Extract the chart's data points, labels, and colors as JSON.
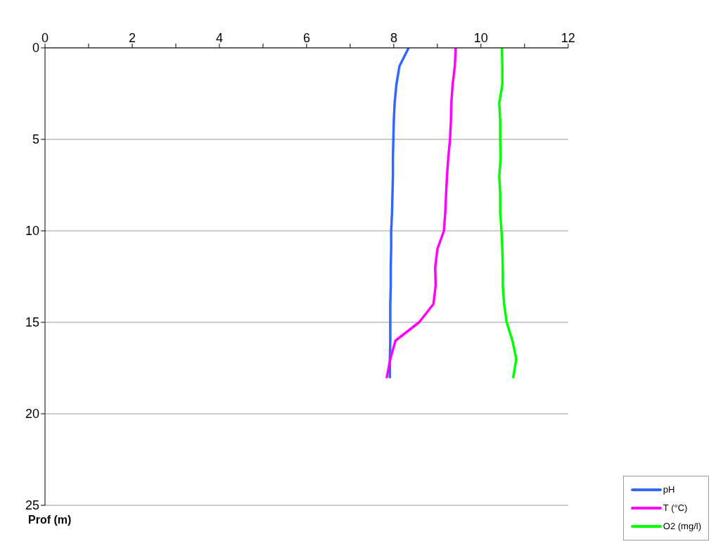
{
  "chart_data": {
    "type": "line",
    "ylabel": "Prof (m)",
    "xlim": [
      0,
      12
    ],
    "xticks": [
      0,
      {
        "value": 1,
        "label": null
      },
      2,
      {
        "value": 3,
        "label": null
      },
      4,
      {
        "value": 5,
        "label": null
      },
      6,
      {
        "value": 7,
        "label": null
      },
      8,
      {
        "value": 9,
        "label": null
      },
      10,
      {
        "value": 11,
        "label": null
      },
      12
    ],
    "ylim": [
      25,
      0
    ],
    "yticks": [
      0,
      5,
      10,
      15,
      20,
      25
    ],
    "grid": "y",
    "legend": "bottom right",
    "marker": "none",
    "line_style": "solid",
    "series": [
      {
        "name": "pH",
        "color": "#3366ff",
        "x": [
          8.34,
          8.13,
          8.06,
          8.02,
          8.0,
          7.99,
          7.98,
          7.98,
          7.97,
          7.96,
          7.94,
          7.94,
          7.93,
          7.93,
          7.92,
          7.92,
          7.92,
          7.91,
          7.91
        ],
        "values": [
          0,
          1,
          2,
          3,
          4,
          5,
          6,
          7,
          8,
          9,
          10,
          11,
          12,
          13,
          14,
          15,
          16,
          17,
          18
        ]
      },
      {
        "name": "T (°C)",
        "color": "#ff00ff",
        "x": [
          9.42,
          9.4,
          9.35,
          9.32,
          9.31,
          9.29,
          9.25,
          9.22,
          9.2,
          9.18,
          9.15,
          9.0,
          8.95,
          8.96,
          8.91,
          8.58,
          8.04,
          7.92,
          7.84
        ],
        "values": [
          0,
          1,
          2,
          3,
          4,
          5,
          6,
          7,
          8,
          9,
          10,
          11,
          12,
          13,
          14,
          15,
          16,
          17,
          18
        ]
      },
      {
        "name": "O2 (mg/l)",
        "color": "#00ff00",
        "x": [
          10.48,
          10.49,
          10.49,
          10.42,
          10.44,
          10.44,
          10.45,
          10.42,
          10.44,
          10.44,
          10.47,
          10.49,
          10.5,
          10.5,
          10.53,
          10.59,
          10.72,
          10.81,
          10.74
        ],
        "values": [
          0,
          1,
          2,
          3,
          4,
          5,
          6,
          7,
          8,
          9,
          10,
          11,
          12,
          13,
          14,
          15,
          16,
          17,
          18
        ]
      }
    ]
  }
}
